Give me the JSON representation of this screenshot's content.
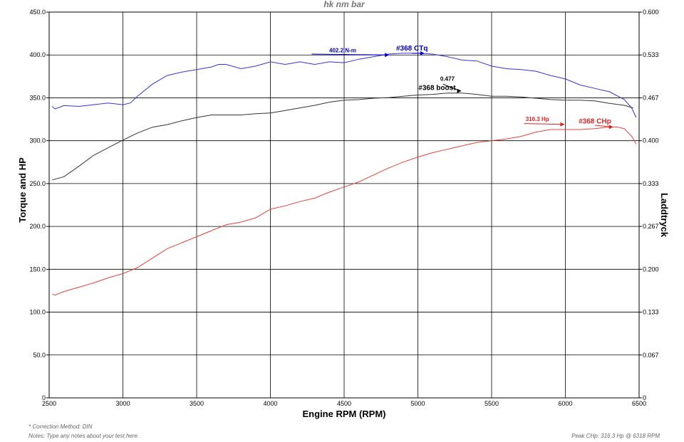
{
  "chart_data": {
    "type": "line",
    "title": "hk nm bar",
    "xlabel": "Engine RPM (RPM)",
    "ylabel": "Torque and HP",
    "y2label": "Laddtryck",
    "xlim": [
      2500,
      6500
    ],
    "ylim": [
      0,
      450
    ],
    "y2lim": [
      0,
      0.6
    ],
    "grid": true,
    "x_ticks": [
      "2500",
      "3000",
      "3500",
      "4000",
      "4500",
      "5000",
      "5500",
      "6000",
      "6500"
    ],
    "y_ticks": [
      "0",
      "50.0",
      "100.0",
      "150.0",
      "200.0",
      "250.0",
      "300.0",
      "350.0",
      "400.0",
      "450.0"
    ],
    "y2_ticks": [
      "0",
      "0.067",
      "0.133",
      "0.200",
      "0.267",
      "0.333",
      "0.400",
      "0.467",
      "0.533",
      "0.600"
    ],
    "series": [
      {
        "name": "#368 CTq",
        "axis": "left",
        "color": "#3333dd",
        "points": [
          [
            2520,
            340
          ],
          [
            2540,
            337
          ],
          [
            2600,
            341
          ],
          [
            2700,
            340
          ],
          [
            2800,
            342
          ],
          [
            2900,
            344
          ],
          [
            3000,
            342
          ],
          [
            3050,
            344
          ],
          [
            3100,
            352
          ],
          [
            3200,
            366
          ],
          [
            3300,
            376
          ],
          [
            3400,
            380
          ],
          [
            3500,
            383
          ],
          [
            3600,
            386
          ],
          [
            3650,
            389
          ],
          [
            3700,
            389
          ],
          [
            3800,
            384
          ],
          [
            3900,
            387
          ],
          [
            4000,
            392
          ],
          [
            4100,
            389
          ],
          [
            4200,
            392
          ],
          [
            4300,
            389
          ],
          [
            4400,
            392
          ],
          [
            4500,
            391
          ],
          [
            4600,
            395
          ],
          [
            4700,
            398
          ],
          [
            4800,
            401
          ],
          [
            4900,
            402
          ],
          [
            5000,
            402
          ],
          [
            5100,
            401
          ],
          [
            5200,
            398
          ],
          [
            5300,
            394
          ],
          [
            5400,
            393
          ],
          [
            5500,
            387
          ],
          [
            5600,
            384
          ],
          [
            5700,
            383
          ],
          [
            5800,
            381
          ],
          [
            5900,
            376
          ],
          [
            6000,
            372
          ],
          [
            6100,
            365
          ],
          [
            6200,
            361
          ],
          [
            6300,
            357
          ],
          [
            6400,
            348
          ],
          [
            6450,
            338
          ],
          [
            6480,
            327
          ]
        ]
      },
      {
        "name": "#368 boost",
        "axis": "right",
        "color": "#333333",
        "points": [
          [
            2520,
            0.339
          ],
          [
            2600,
            0.344
          ],
          [
            2700,
            0.36
          ],
          [
            2800,
            0.377
          ],
          [
            2900,
            0.389
          ],
          [
            3000,
            0.401
          ],
          [
            3100,
            0.412
          ],
          [
            3200,
            0.421
          ],
          [
            3300,
            0.425
          ],
          [
            3400,
            0.431
          ],
          [
            3500,
            0.436
          ],
          [
            3600,
            0.44
          ],
          [
            3700,
            0.44
          ],
          [
            3800,
            0.44
          ],
          [
            3900,
            0.442
          ],
          [
            4000,
            0.443
          ],
          [
            4100,
            0.447
          ],
          [
            4200,
            0.451
          ],
          [
            4300,
            0.455
          ],
          [
            4400,
            0.46
          ],
          [
            4500,
            0.463
          ],
          [
            4600,
            0.464
          ],
          [
            4700,
            0.466
          ],
          [
            4800,
            0.467
          ],
          [
            4900,
            0.469
          ],
          [
            5000,
            0.471
          ],
          [
            5100,
            0.472
          ],
          [
            5200,
            0.474
          ],
          [
            5300,
            0.474
          ],
          [
            5400,
            0.472
          ],
          [
            5500,
            0.469
          ],
          [
            5600,
            0.469
          ],
          [
            5700,
            0.468
          ],
          [
            5800,
            0.466
          ],
          [
            5900,
            0.464
          ],
          [
            6000,
            0.463
          ],
          [
            6100,
            0.463
          ],
          [
            6200,
            0.462
          ],
          [
            6300,
            0.458
          ],
          [
            6400,
            0.455
          ],
          [
            6460,
            0.451
          ]
        ]
      },
      {
        "name": "#368 CHp",
        "axis": "left",
        "color": "#e8413a",
        "points": [
          [
            2520,
            121
          ],
          [
            2540,
            120
          ],
          [
            2600,
            124
          ],
          [
            2700,
            129
          ],
          [
            2800,
            134
          ],
          [
            2900,
            140
          ],
          [
            3000,
            145
          ],
          [
            3100,
            152
          ],
          [
            3200,
            163
          ],
          [
            3300,
            174
          ],
          [
            3400,
            181
          ],
          [
            3500,
            188
          ],
          [
            3600,
            195
          ],
          [
            3700,
            202
          ],
          [
            3800,
            205
          ],
          [
            3900,
            210
          ],
          [
            4000,
            220
          ],
          [
            4100,
            224
          ],
          [
            4200,
            229
          ],
          [
            4300,
            233
          ],
          [
            4400,
            240
          ],
          [
            4500,
            246
          ],
          [
            4600,
            252
          ],
          [
            4700,
            260
          ],
          [
            4800,
            268
          ],
          [
            4900,
            275
          ],
          [
            5000,
            281
          ],
          [
            5100,
            286
          ],
          [
            5200,
            290
          ],
          [
            5300,
            294
          ],
          [
            5400,
            298
          ],
          [
            5500,
            300
          ],
          [
            5600,
            302
          ],
          [
            5700,
            305
          ],
          [
            5800,
            310
          ],
          [
            5900,
            313
          ],
          [
            6000,
            313
          ],
          [
            6100,
            313
          ],
          [
            6200,
            314
          ],
          [
            6300,
            316
          ],
          [
            6350,
            316
          ],
          [
            6400,
            314
          ],
          [
            6450,
            305
          ],
          [
            6480,
            296
          ]
        ]
      }
    ],
    "annotations": [
      {
        "text": "402.2 N-m",
        "color": "#0000cc",
        "x": 4490,
        "y": 403
      },
      {
        "text": "#368 CTq",
        "color": "#0000cc",
        "x": 4960,
        "y": 405
      },
      {
        "text": "0.477",
        "color": "#000000",
        "x": 5200,
        "y": 370
      },
      {
        "text": "#368 boost",
        "color": "#000000",
        "x": 5130,
        "y": 359
      },
      {
        "text": "316.3 Hp",
        "color": "#dd2222",
        "x": 5810,
        "y": 323
      },
      {
        "text": "#368 CHp",
        "color": "#dd2222",
        "x": 6200,
        "y": 320
      }
    ]
  },
  "notes": {
    "correction": "* Correction Method: DIN",
    "notes_line": "Notes: Type any notes about your test here.",
    "peak": "Peak CHp: 316.3 Hp @ 6318 RPM"
  }
}
